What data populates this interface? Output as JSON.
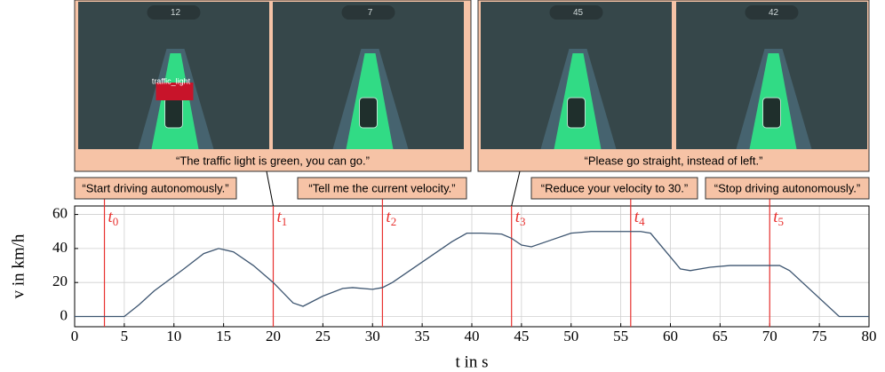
{
  "chart_data": {
    "type": "line",
    "xlabel": "t in s",
    "ylabel": "v in km/h",
    "x": [
      0,
      5,
      6.5,
      8,
      11,
      13,
      14.5,
      16,
      18,
      20,
      22,
      23,
      25,
      27,
      28,
      30,
      31,
      32,
      35,
      38,
      39.5,
      41,
      43,
      44,
      45,
      46,
      48,
      50,
      52,
      57,
      58,
      60,
      61,
      62,
      64,
      66,
      71,
      72,
      77,
      80
    ],
    "series": [
      {
        "name": "v",
        "color": "#3d5570",
        "values": [
          0,
          0,
          7,
          15,
          28,
          37,
          40,
          38,
          30,
          20,
          8,
          6,
          12,
          16.5,
          17,
          16,
          17,
          20,
          32,
          44,
          49,
          49,
          48.5,
          46,
          42,
          41,
          45,
          49,
          50,
          50,
          49,
          35,
          28,
          27,
          29,
          30,
          30,
          27,
          0,
          0
        ]
      }
    ],
    "xlim": [
      0,
      80
    ],
    "ylim": [
      -6,
      65
    ],
    "xticks": [
      0,
      5,
      10,
      15,
      20,
      25,
      30,
      35,
      40,
      45,
      50,
      55,
      60,
      65,
      70,
      75,
      80
    ],
    "yticks": [
      0,
      20,
      40,
      60
    ],
    "grid": true,
    "events": [
      {
        "t": 3,
        "label": "t",
        "sub": "0"
      },
      {
        "t": 20,
        "label": "t",
        "sub": "1"
      },
      {
        "t": 31,
        "label": "t",
        "sub": "2"
      },
      {
        "t": 44,
        "label": "t",
        "sub": "3"
      },
      {
        "t": 56,
        "label": "t",
        "sub": "4"
      },
      {
        "t": 70,
        "label": "t",
        "sub": "5"
      }
    ],
    "event_color": "#e8312f",
    "commands": [
      "“Start driving autonomously.”",
      "“Tell me the current velocity.”",
      "“Reduce your velocity to 30.”",
      "“Stop driving autonomously.”"
    ],
    "captions": [
      "“The traffic light is green, you can go.”",
      "“Please go straight, instead of left.”"
    ],
    "screenshots": [
      {
        "hud": "12",
        "object_label": "traffic_light"
      },
      {
        "hud": "7"
      },
      {
        "hud": "45"
      },
      {
        "hud": "42"
      }
    ]
  }
}
